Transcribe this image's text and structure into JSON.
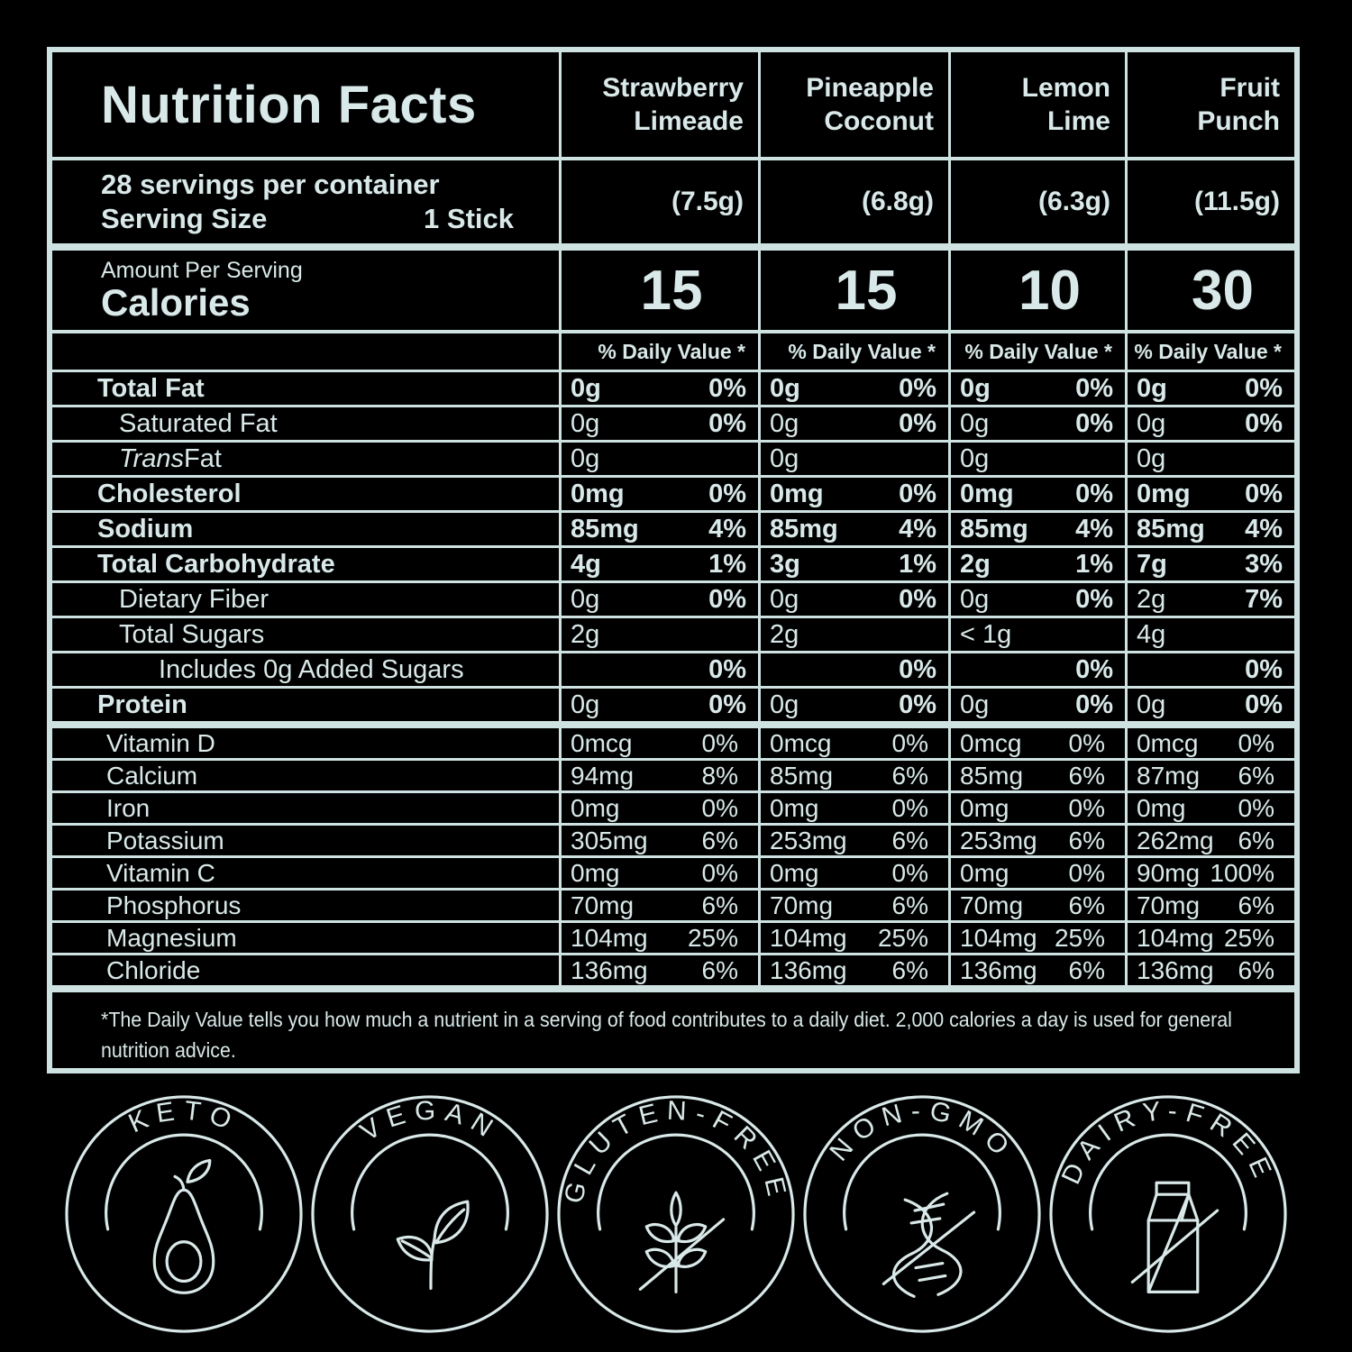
{
  "colors": {
    "background": "#000000",
    "foreground": "#d9e8e8"
  },
  "nutrition_label": {
    "title": "Nutrition Facts",
    "servings_per_container": "28 servings per container",
    "serving_size_label": "Serving Size",
    "serving_size_value": "1 Stick",
    "amount_per_serving": "Amount Per Serving",
    "calories_label": "Calories",
    "daily_value_header": "% Daily Value *",
    "flavors": [
      {
        "name_line1": "Strawberry",
        "name_line2": "Limeade",
        "serving_weight": "(7.5g)",
        "calories": "15"
      },
      {
        "name_line1": "Pineapple",
        "name_line2": "Coconut",
        "serving_weight": "(6.8g)",
        "calories": "15"
      },
      {
        "name_line1": "Lemon",
        "name_line2": "Lime",
        "serving_weight": "(6.3g)",
        "calories": "10"
      },
      {
        "name_line1": "Fruit",
        "name_line2": "Punch",
        "serving_weight": "(11.5g)",
        "calories": "30"
      }
    ],
    "nutrient_rows": [
      {
        "label": "Total Fat",
        "type": "main",
        "values": [
          {
            "amount": "0g",
            "dv": "0%"
          },
          {
            "amount": "0g",
            "dv": "0%"
          },
          {
            "amount": "0g",
            "dv": "0%"
          },
          {
            "amount": "0g",
            "dv": "0%"
          }
        ]
      },
      {
        "label": "Saturated Fat",
        "type": "sub",
        "values": [
          {
            "amount": "0g",
            "dv": "0%"
          },
          {
            "amount": "0g",
            "dv": "0%"
          },
          {
            "amount": "0g",
            "dv": "0%"
          },
          {
            "amount": "0g",
            "dv": "0%"
          }
        ]
      },
      {
        "label_italic": "Trans",
        "label": " Fat",
        "type": "sub",
        "values": [
          {
            "amount": "0g",
            "dv": ""
          },
          {
            "amount": "0g",
            "dv": ""
          },
          {
            "amount": "0g",
            "dv": ""
          },
          {
            "amount": "0g",
            "dv": ""
          }
        ]
      },
      {
        "label": "Cholesterol",
        "type": "main",
        "values": [
          {
            "amount": "0mg",
            "dv": "0%"
          },
          {
            "amount": "0mg",
            "dv": "0%"
          },
          {
            "amount": "0mg",
            "dv": "0%"
          },
          {
            "amount": "0mg",
            "dv": "0%"
          }
        ]
      },
      {
        "label": "Sodium",
        "type": "main",
        "values": [
          {
            "amount": "85mg",
            "dv": "4%"
          },
          {
            "amount": "85mg",
            "dv": "4%"
          },
          {
            "amount": "85mg",
            "dv": "4%"
          },
          {
            "amount": "85mg",
            "dv": "4%"
          }
        ]
      },
      {
        "label": "Total Carbohydrate",
        "type": "main",
        "values": [
          {
            "amount": "4g",
            "dv": "1%"
          },
          {
            "amount": "3g",
            "dv": "1%"
          },
          {
            "amount": "2g",
            "dv": "1%"
          },
          {
            "amount": "7g",
            "dv": "3%"
          }
        ]
      },
      {
        "label": "Dietary Fiber",
        "type": "sub",
        "values": [
          {
            "amount": "0g",
            "dv": "0%"
          },
          {
            "amount": "0g",
            "dv": "0%"
          },
          {
            "amount": "0g",
            "dv": "0%"
          },
          {
            "amount": "2g",
            "dv": "7%"
          }
        ]
      },
      {
        "label": "Total Sugars",
        "type": "sub",
        "values": [
          {
            "amount": "2g",
            "dv": ""
          },
          {
            "amount": "2g",
            "dv": ""
          },
          {
            "amount": "< 1g",
            "dv": ""
          },
          {
            "amount": "4g",
            "dv": ""
          }
        ]
      },
      {
        "label": "Includes 0g Added Sugars",
        "type": "sub2",
        "values": [
          {
            "amount": "",
            "dv": "0%"
          },
          {
            "amount": "",
            "dv": "0%"
          },
          {
            "amount": "",
            "dv": "0%"
          },
          {
            "amount": "",
            "dv": "0%"
          }
        ]
      },
      {
        "label": "Protein",
        "type": "protein",
        "values": [
          {
            "amount": "0g",
            "dv": "0%"
          },
          {
            "amount": "0g",
            "dv": "0%"
          },
          {
            "amount": "0g",
            "dv": "0%"
          },
          {
            "amount": "0g",
            "dv": "0%"
          }
        ]
      }
    ],
    "vitamin_rows": [
      {
        "label": "Vitamin D",
        "values": [
          {
            "amount": "0mcg",
            "dv": "0%"
          },
          {
            "amount": "0mcg",
            "dv": "0%"
          },
          {
            "amount": "0mcg",
            "dv": "0%"
          },
          {
            "amount": "0mcg",
            "dv": "0%"
          }
        ]
      },
      {
        "label": "Calcium",
        "values": [
          {
            "amount": "94mg",
            "dv": "8%"
          },
          {
            "amount": "85mg",
            "dv": "6%"
          },
          {
            "amount": "85mg",
            "dv": "6%"
          },
          {
            "amount": "87mg",
            "dv": "6%"
          }
        ]
      },
      {
        "label": "Iron",
        "values": [
          {
            "amount": "0mg",
            "dv": "0%"
          },
          {
            "amount": "0mg",
            "dv": "0%"
          },
          {
            "amount": "0mg",
            "dv": "0%"
          },
          {
            "amount": "0mg",
            "dv": "0%"
          }
        ]
      },
      {
        "label": "Potassium",
        "values": [
          {
            "amount": "305mg",
            "dv": "6%"
          },
          {
            "amount": "253mg",
            "dv": "6%"
          },
          {
            "amount": "253mg",
            "dv": "6%"
          },
          {
            "amount": "262mg",
            "dv": "6%"
          }
        ]
      },
      {
        "label": "Vitamin C",
        "values": [
          {
            "amount": "0mg",
            "dv": "0%"
          },
          {
            "amount": "0mg",
            "dv": "0%"
          },
          {
            "amount": "0mg",
            "dv": "0%"
          },
          {
            "amount": "90mg",
            "dv": "100%"
          }
        ]
      },
      {
        "label": "Phosphorus",
        "values": [
          {
            "amount": "70mg",
            "dv": "6%"
          },
          {
            "amount": "70mg",
            "dv": "6%"
          },
          {
            "amount": "70mg",
            "dv": "6%"
          },
          {
            "amount": "70mg",
            "dv": "6%"
          }
        ]
      },
      {
        "label": "Magnesium",
        "values": [
          {
            "amount": "104mg",
            "dv": "25%"
          },
          {
            "amount": "104mg",
            "dv": "25%"
          },
          {
            "amount": "104mg",
            "dv": "25%"
          },
          {
            "amount": "104mg",
            "dv": "25%"
          }
        ]
      },
      {
        "label": "Chloride",
        "values": [
          {
            "amount": "136mg",
            "dv": "6%"
          },
          {
            "amount": "136mg",
            "dv": "6%"
          },
          {
            "amount": "136mg",
            "dv": "6%"
          },
          {
            "amount": "136mg",
            "dv": "6%"
          }
        ]
      }
    ],
    "footnote_line1": "*The Daily Value tells you how much a nutrient in a serving of food contributes to a daily diet. 2,000 calories a day is used for general",
    "footnote_line2": "nutrition advice."
  },
  "badges": [
    {
      "label": "KETO",
      "icon": "avocado-icon"
    },
    {
      "label": "VEGAN",
      "icon": "sprout-icon"
    },
    {
      "label": "GLUTEN-FREE",
      "icon": "wheat-crossed-icon"
    },
    {
      "label": "NON-GMO",
      "icon": "dna-crossed-icon"
    },
    {
      "label": "DAIRY-FREE",
      "icon": "milk-carton-crossed-icon"
    }
  ]
}
